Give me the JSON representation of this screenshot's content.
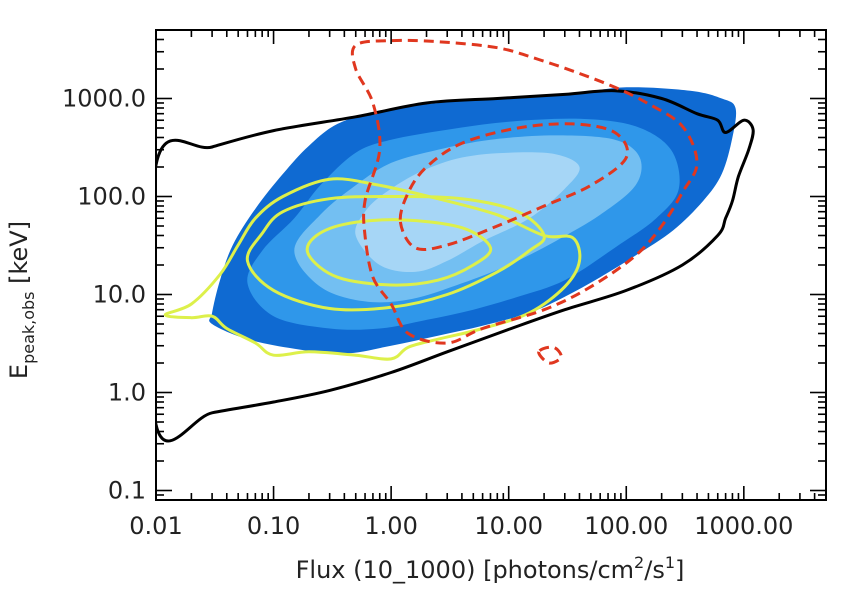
{
  "chart_data": {
    "type": "contour",
    "xlabel": {
      "main": "Flux (10_1000) [photons/cm",
      "sup1": "2",
      "mid": "/s",
      "sup2": "1",
      "end": "]"
    },
    "ylabel": {
      "main": "E",
      "sub": "peak,obs",
      "unit": " [keV]"
    },
    "xscale": "log",
    "yscale": "log",
    "xlim": [
      0.01,
      5000
    ],
    "ylim": [
      0.08,
      5000
    ],
    "x_ticks": [
      {
        "value": 0.01,
        "label": "0.01"
      },
      {
        "value": 0.1,
        "label": "0.10"
      },
      {
        "value": 1,
        "label": "1.00"
      },
      {
        "value": 10,
        "label": "10.00"
      },
      {
        "value": 100,
        "label": "100.00"
      },
      {
        "value": 1000,
        "label": "1000.00"
      }
    ],
    "y_ticks": [
      {
        "value": 0.1,
        "label": "0.1"
      },
      {
        "value": 1,
        "label": "1.0"
      },
      {
        "value": 10,
        "label": "10.0"
      },
      {
        "value": 100,
        "label": "100.0"
      },
      {
        "value": 1000,
        "label": "1000.0"
      }
    ],
    "colors": {
      "fill_outer": "#0f6ad2",
      "fill_mid": "#2f97ea",
      "fill_inner": "#73bff2",
      "fill_core": "#a6d6f6",
      "black": "#000000",
      "yellow": "#ddf04a",
      "red": "#e0371f"
    },
    "series": [
      {
        "kind": "filled",
        "level": "outer",
        "points": [
          [
            0.03,
            6.5
          ],
          [
            0.03,
            5
          ],
          [
            0.06,
            3.5
          ],
          [
            0.15,
            2.8
          ],
          [
            0.4,
            2.5
          ],
          [
            1,
            3
          ],
          [
            2.5,
            3.8
          ],
          [
            6,
            4.8
          ],
          [
            15,
            6.5
          ],
          [
            30,
            9.5
          ],
          [
            60,
            15
          ],
          [
            120,
            25
          ],
          [
            250,
            45
          ],
          [
            450,
            90
          ],
          [
            650,
            170
          ],
          [
            800,
            400
          ],
          [
            850,
            800
          ],
          [
            650,
            1000
          ],
          [
            350,
            1200
          ],
          [
            100,
            1300
          ],
          [
            30,
            1100
          ],
          [
            8,
            1000
          ],
          [
            2.5,
            900
          ],
          [
            0.8,
            750
          ],
          [
            0.35,
            550
          ],
          [
            0.2,
            330
          ],
          [
            0.12,
            170
          ],
          [
            0.07,
            75
          ],
          [
            0.045,
            32
          ],
          [
            0.035,
            14
          ]
        ]
      },
      {
        "kind": "filled",
        "level": "mid",
        "points": [
          [
            0.06,
            13
          ],
          [
            0.1,
            6
          ],
          [
            0.3,
            4.5
          ],
          [
            0.8,
            4.5
          ],
          [
            2,
            5.5
          ],
          [
            5,
            7
          ],
          [
            12,
            9.5
          ],
          [
            30,
            14
          ],
          [
            80,
            30
          ],
          [
            180,
            60
          ],
          [
            280,
            120
          ],
          [
            240,
            300
          ],
          [
            120,
            520
          ],
          [
            40,
            620
          ],
          [
            10,
            580
          ],
          [
            3,
            480
          ],
          [
            1,
            380
          ],
          [
            0.5,
            280
          ],
          [
            0.25,
            130
          ],
          [
            0.15,
            60
          ],
          [
            0.08,
            28
          ]
        ]
      },
      {
        "kind": "filled",
        "level": "inner",
        "points": [
          [
            0.15,
            28
          ],
          [
            0.25,
            12
          ],
          [
            0.6,
            8.5
          ],
          [
            1.5,
            9
          ],
          [
            4,
            13
          ],
          [
            10,
            20
          ],
          [
            25,
            35
          ],
          [
            60,
            65
          ],
          [
            120,
            130
          ],
          [
            130,
            250
          ],
          [
            80,
            380
          ],
          [
            25,
            420
          ],
          [
            7,
            380
          ],
          [
            2.5,
            300
          ],
          [
            1,
            220
          ],
          [
            0.5,
            130
          ],
          [
            0.25,
            65
          ]
        ]
      },
      {
        "kind": "filled",
        "level": "core",
        "points": [
          [
            0.5,
            40
          ],
          [
            0.8,
            20
          ],
          [
            1.6,
            17
          ],
          [
            3,
            22
          ],
          [
            6,
            35
          ],
          [
            15,
            60
          ],
          [
            30,
            120
          ],
          [
            40,
            200
          ],
          [
            25,
            270
          ],
          [
            10,
            280
          ],
          [
            4,
            250
          ],
          [
            1.8,
            180
          ],
          [
            0.9,
            110
          ],
          [
            0.6,
            70
          ]
        ]
      },
      {
        "kind": "line",
        "style": "black",
        "points": [
          [
            0.01,
            0.47
          ],
          [
            0.03,
            0.62
          ],
          [
            0.1,
            0.8
          ],
          [
            0.3,
            1.05
          ],
          [
            1,
            1.6
          ],
          [
            3,
            2.6
          ],
          [
            10,
            4.4
          ],
          [
            30,
            7
          ],
          [
            100,
            11
          ],
          [
            300,
            20
          ],
          [
            600,
            40
          ],
          [
            700,
            60
          ],
          [
            800,
            90
          ],
          [
            900,
            160
          ],
          [
            1100,
            300
          ],
          [
            1200,
            480
          ],
          [
            1000,
            600
          ],
          [
            700,
            450
          ],
          [
            600,
            600
          ],
          [
            400,
            700
          ],
          [
            200,
            1000
          ],
          [
            80,
            1200
          ],
          [
            30,
            1100
          ],
          [
            8,
            1000
          ],
          [
            2,
            900
          ],
          [
            0.5,
            650
          ],
          [
            0.1,
            470
          ],
          [
            0.03,
            320
          ],
          [
            0.01,
            210
          ]
        ]
      },
      {
        "kind": "line",
        "style": "yellow",
        "points": [
          [
            0.012,
            6.2
          ],
          [
            0.02,
            5.8
          ],
          [
            0.03,
            6
          ],
          [
            0.04,
            4.5
          ],
          [
            0.07,
            3.2
          ],
          [
            0.1,
            2.4
          ],
          [
            0.2,
            2.6
          ],
          [
            0.5,
            2.4
          ],
          [
            1,
            2.2
          ],
          [
            1.4,
            2.9
          ],
          [
            2.5,
            3.5
          ],
          [
            6,
            4.5
          ],
          [
            15,
            6.5
          ],
          [
            30,
            12
          ],
          [
            40,
            22
          ],
          [
            35,
            38
          ],
          [
            20,
            40
          ],
          [
            8,
            65
          ],
          [
            2.5,
            95
          ],
          [
            0.8,
            130
          ],
          [
            0.3,
            150
          ],
          [
            0.12,
            100
          ],
          [
            0.07,
            60
          ],
          [
            0.05,
            32
          ],
          [
            0.035,
            16
          ],
          [
            0.02,
            8
          ]
        ]
      },
      {
        "kind": "line",
        "style": "yellow",
        "points": [
          [
            0.06,
            22
          ],
          [
            0.1,
            11
          ],
          [
            0.3,
            7.2
          ],
          [
            1,
            7.4
          ],
          [
            3,
            10
          ],
          [
            8,
            17
          ],
          [
            15,
            28
          ],
          [
            20,
            40
          ],
          [
            12,
            70
          ],
          [
            4,
            95
          ],
          [
            1,
            100
          ],
          [
            0.3,
            95
          ],
          [
            0.12,
            70
          ],
          [
            0.08,
            42
          ]
        ]
      },
      {
        "kind": "line",
        "style": "yellow",
        "points": [
          [
            0.2,
            25
          ],
          [
            0.35,
            15
          ],
          [
            1,
            12.5
          ],
          [
            2.5,
            14
          ],
          [
            5,
            20
          ],
          [
            7,
            30
          ],
          [
            4,
            48
          ],
          [
            1.2,
            58
          ],
          [
            0.4,
            52
          ],
          [
            0.22,
            38
          ]
        ]
      },
      {
        "kind": "line",
        "style": "red",
        "points": [
          [
            0.7,
            15
          ],
          [
            1,
            8
          ],
          [
            1.4,
            4
          ],
          [
            3,
            3.2
          ],
          [
            6,
            4.5
          ],
          [
            20,
            7
          ],
          [
            50,
            12
          ],
          [
            120,
            25
          ],
          [
            200,
            50
          ],
          [
            300,
            110
          ],
          [
            400,
            220
          ],
          [
            300,
            520
          ],
          [
            150,
            900
          ],
          [
            80,
            1300
          ],
          [
            40,
            1800
          ],
          [
            18,
            2500
          ],
          [
            8,
            3300
          ],
          [
            2.5,
            3800
          ],
          [
            1,
            3900
          ],
          [
            0.5,
            3500
          ],
          [
            0.5,
            2000
          ],
          [
            0.7,
            900
          ],
          [
            0.8,
            300
          ],
          [
            0.6,
            90
          ],
          [
            0.6,
            40
          ]
        ]
      },
      {
        "kind": "line",
        "style": "red",
        "points": [
          [
            1.2,
            55
          ],
          [
            1.6,
            30
          ],
          [
            3,
            32
          ],
          [
            8,
            50
          ],
          [
            20,
            80
          ],
          [
            50,
            130
          ],
          [
            100,
            250
          ],
          [
            80,
            450
          ],
          [
            35,
            550
          ],
          [
            12,
            500
          ],
          [
            4,
            350
          ],
          [
            2,
            200
          ],
          [
            1.4,
            110
          ]
        ]
      },
      {
        "kind": "line",
        "style": "red",
        "points": [
          [
            18,
            2.6
          ],
          [
            22,
            2
          ],
          [
            28,
            2.3
          ],
          [
            24,
            2.9
          ]
        ]
      }
    ]
  }
}
